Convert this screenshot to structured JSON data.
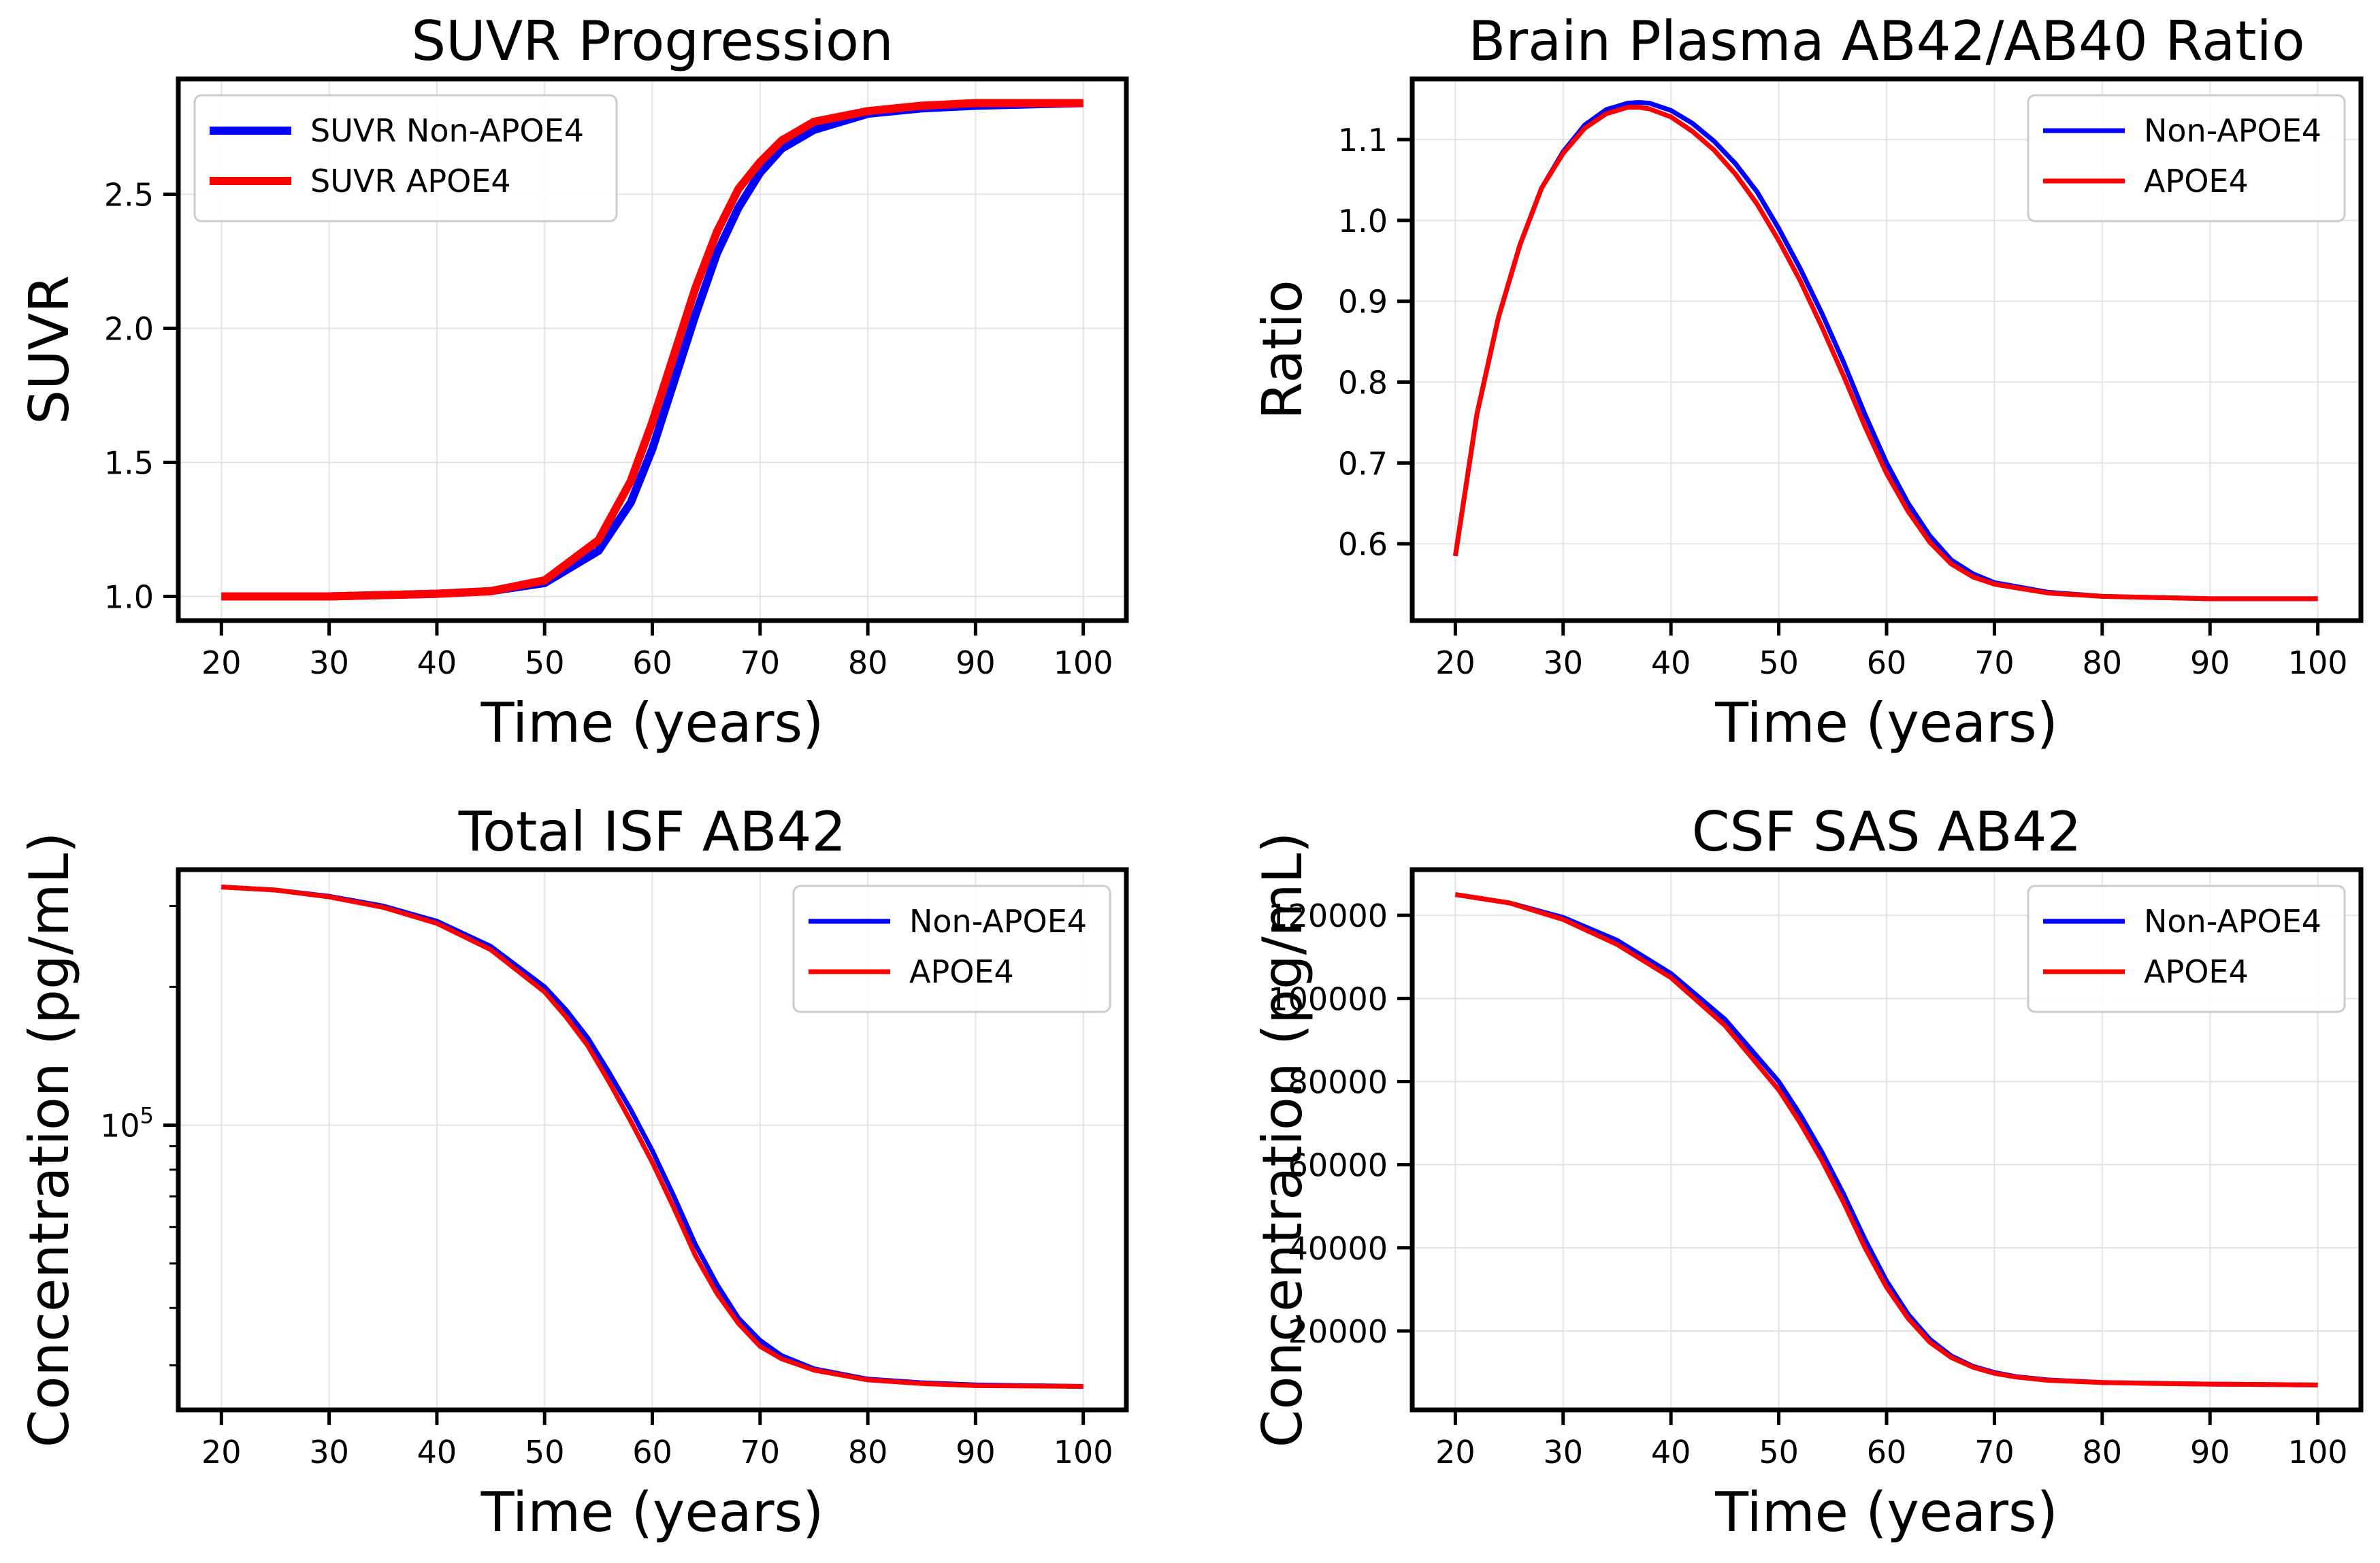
{
  "figure": {
    "charts": [
      {
        "title": "SUVR Progression",
        "xlabel": "Time (years)",
        "ylabel": "SUVR"
      },
      {
        "title": "Brain Plasma AB42/AB40 Ratio",
        "xlabel": "Time (years)",
        "ylabel": "Ratio"
      },
      {
        "title": "Total ISF AB42",
        "xlabel": "Time (years)",
        "ylabel": "Concentration (pg/mL)"
      },
      {
        "title": "CSF SAS AB42",
        "xlabel": "Time (years)",
        "ylabel": "Concentration (pg/mL)"
      }
    ]
  },
  "colors": {
    "non_apoe4": "#0000ff",
    "apoe4": "#ff0000",
    "grid": "#e3e3e3",
    "axis": "#000000"
  },
  "chart_data": [
    {
      "type": "line",
      "title": "SUVR Progression",
      "xlabel": "Time (years)",
      "ylabel": "SUVR",
      "xlim": [
        16,
        104
      ],
      "ylim": [
        0.91,
        2.93
      ],
      "xticks": [
        "20",
        "30",
        "40",
        "50",
        "60",
        "70",
        "80",
        "90",
        "100"
      ],
      "yticks": [
        "1.0",
        "1.5",
        "2.0",
        "2.5"
      ],
      "grid": true,
      "legend": "upper-left",
      "series": [
        {
          "name": "SUVR Non-APOE4",
          "color": "#0000ff",
          "x": [
            20,
            30,
            40,
            45,
            50,
            55,
            58,
            60,
            62,
            64,
            66,
            68,
            70,
            72,
            75,
            80,
            85,
            90,
            100
          ],
          "y": [
            1.0,
            1.0,
            1.01,
            1.02,
            1.05,
            1.17,
            1.35,
            1.55,
            1.8,
            2.05,
            2.28,
            2.45,
            2.58,
            2.67,
            2.74,
            2.8,
            2.82,
            2.83,
            2.84
          ]
        },
        {
          "name": "SUVR APOE4",
          "color": "#ff0000",
          "x": [
            20,
            30,
            40,
            45,
            50,
            55,
            58,
            60,
            62,
            64,
            66,
            68,
            70,
            72,
            75,
            80,
            85,
            90,
            100
          ],
          "y": [
            1.0,
            1.0,
            1.01,
            1.02,
            1.06,
            1.21,
            1.43,
            1.65,
            1.9,
            2.15,
            2.36,
            2.52,
            2.62,
            2.7,
            2.77,
            2.81,
            2.83,
            2.84,
            2.84
          ]
        }
      ]
    },
    {
      "type": "line",
      "title": "Brain Plasma AB42/AB40 Ratio",
      "xlabel": "Time (years)",
      "ylabel": "Ratio",
      "xlim": [
        16,
        104
      ],
      "ylim": [
        0.505,
        1.175
      ],
      "xticks": [
        "20",
        "30",
        "40",
        "50",
        "60",
        "70",
        "80",
        "90",
        "100"
      ],
      "yticks": [
        "0.6",
        "0.7",
        "0.8",
        "0.9",
        "1.0",
        "1.1"
      ],
      "grid": true,
      "legend": "upper-right",
      "series": [
        {
          "name": "Non-APOE4",
          "color": "#0000ff",
          "x": [
            20,
            22,
            24,
            26,
            28,
            30,
            32,
            34,
            36,
            37,
            38,
            40,
            42,
            44,
            46,
            48,
            50,
            52,
            54,
            56,
            58,
            60,
            62,
            64,
            66,
            68,
            70,
            75,
            80,
            90,
            100
          ],
          "y": [
            0.585,
            0.76,
            0.88,
            0.97,
            1.04,
            1.085,
            1.118,
            1.137,
            1.145,
            1.146,
            1.145,
            1.136,
            1.12,
            1.098,
            1.07,
            1.035,
            0.99,
            0.94,
            0.885,
            0.825,
            0.76,
            0.7,
            0.65,
            0.61,
            0.58,
            0.563,
            0.552,
            0.54,
            0.535,
            0.532,
            0.532
          ]
        },
        {
          "name": "APOE4",
          "color": "#ff0000",
          "x": [
            20,
            22,
            24,
            26,
            28,
            30,
            32,
            34,
            36,
            37,
            38,
            40,
            42,
            44,
            46,
            48,
            50,
            52,
            54,
            56,
            58,
            60,
            62,
            64,
            66,
            68,
            70,
            75,
            80,
            90,
            100
          ],
          "y": [
            0.585,
            0.76,
            0.88,
            0.97,
            1.04,
            1.083,
            1.114,
            1.132,
            1.14,
            1.14,
            1.138,
            1.128,
            1.11,
            1.087,
            1.057,
            1.02,
            0.975,
            0.925,
            0.868,
            0.808,
            0.745,
            0.687,
            0.64,
            0.602,
            0.575,
            0.559,
            0.55,
            0.539,
            0.535,
            0.532,
            0.532
          ]
        }
      ]
    },
    {
      "type": "line",
      "title": "Total ISF AB42",
      "xlabel": "Time (years)",
      "ylabel": "Concentration (pg/mL)",
      "yscale": "log",
      "xlim": [
        16,
        104
      ],
      "ylim": [
        24000,
        360000
      ],
      "xticks": [
        "20",
        "30",
        "40",
        "50",
        "60",
        "70",
        "80",
        "90",
        "100"
      ],
      "yticks": [
        "10^5"
      ],
      "grid": true,
      "legend": "upper-right",
      "series": [
        {
          "name": "Non-APOE4",
          "color": "#0000ff",
          "x": [
            20,
            25,
            30,
            35,
            40,
            45,
            50,
            52,
            54,
            56,
            58,
            60,
            62,
            64,
            66,
            68,
            70,
            72,
            75,
            80,
            85,
            90,
            100
          ],
          "y": [
            330000,
            325000,
            315000,
            300000,
            278000,
            245000,
            200000,
            178000,
            155000,
            130000,
            108000,
            88000,
            70000,
            55000,
            45000,
            38000,
            34000,
            31500,
            29500,
            28000,
            27500,
            27200,
            27000
          ]
        },
        {
          "name": "APOE4",
          "color": "#ff0000",
          "x": [
            20,
            25,
            30,
            35,
            40,
            45,
            50,
            52,
            54,
            56,
            58,
            60,
            62,
            64,
            66,
            68,
            70,
            72,
            75,
            80,
            85,
            90,
            100
          ],
          "y": [
            330000,
            325000,
            314000,
            298000,
            275000,
            241000,
            195000,
            172000,
            149000,
            124000,
            102000,
            83000,
            66000,
            52000,
            43000,
            37000,
            33000,
            31000,
            29300,
            27900,
            27400,
            27100,
            27000
          ]
        }
      ]
    },
    {
      "type": "line",
      "title": "CSF SAS AB42",
      "xlabel": "Time (years)",
      "ylabel": "Concentration (pg/mL)",
      "xlim": [
        16,
        104
      ],
      "ylim": [
        1000,
        131000
      ],
      "xticks": [
        "20",
        "30",
        "40",
        "50",
        "60",
        "70",
        "80",
        "90",
        "100"
      ],
      "yticks": [
        "20000",
        "40000",
        "60000",
        "80000",
        "100000",
        "120000"
      ],
      "grid": true,
      "legend": "upper-right",
      "series": [
        {
          "name": "Non-APOE4",
          "color": "#0000ff",
          "x": [
            20,
            25,
            30,
            35,
            40,
            45,
            50,
            52,
            54,
            56,
            58,
            60,
            62,
            64,
            66,
            68,
            70,
            72,
            75,
            80,
            85,
            90,
            100
          ],
          "y": [
            125000,
            123000,
            119500,
            114000,
            106000,
            95000,
            80000,
            72000,
            63000,
            53000,
            42000,
            32000,
            24000,
            18000,
            14000,
            11500,
            10000,
            9000,
            8200,
            7600,
            7400,
            7200,
            7000
          ]
        },
        {
          "name": "APOE4",
          "color": "#ff0000",
          "x": [
            20,
            25,
            30,
            35,
            40,
            45,
            50,
            52,
            54,
            56,
            58,
            60,
            62,
            64,
            66,
            68,
            70,
            72,
            75,
            80,
            85,
            90,
            100
          ],
          "y": [
            125000,
            123000,
            119000,
            113000,
            105000,
            93500,
            78000,
            70000,
            61000,
            51000,
            40000,
            30500,
            23000,
            17300,
            13600,
            11300,
            9800,
            8900,
            8100,
            7600,
            7350,
            7200,
            7000
          ]
        }
      ]
    }
  ]
}
